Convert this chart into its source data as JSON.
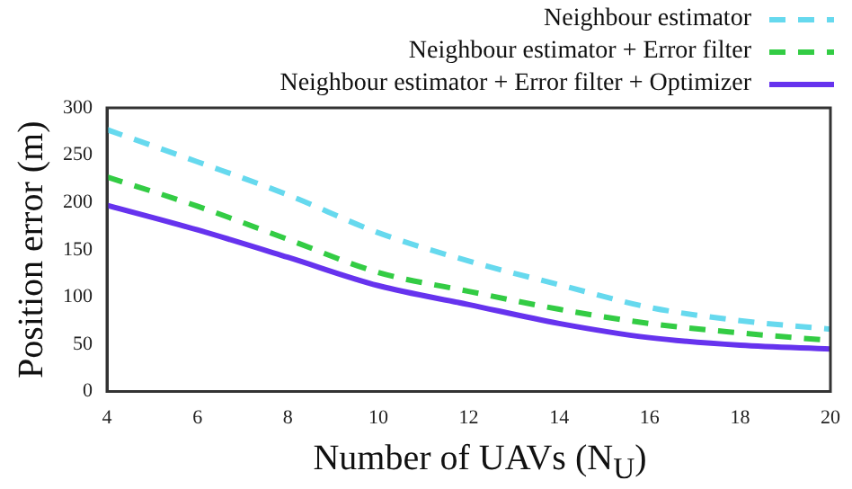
{
  "chart_data": {
    "type": "line",
    "xlabel": "Number of UAVs (N$_{U}$)",
    "ylabel": "Position error (m)",
    "x": [
      4,
      6,
      8,
      10,
      12,
      14,
      16,
      18,
      20
    ],
    "xlim": [
      4,
      20
    ],
    "xticks": [
      4,
      6,
      8,
      10,
      12,
      14,
      16,
      18,
      20
    ],
    "ylim": [
      0,
      300
    ],
    "yticks": [
      0,
      50,
      100,
      150,
      200,
      250,
      300
    ],
    "grid": false,
    "legend": "top right",
    "marker": "none",
    "series": [
      {
        "name": "Neighbour estimator",
        "color": "#66d9ee",
        "line_style": "dashed",
        "values": [
          277,
          243,
          208,
          168,
          138,
          113,
          89,
          75,
          66
        ]
      },
      {
        "name": "Neighbour estimator + Error filter",
        "color": "#33cc44",
        "line_style": "dashed",
        "values": [
          227,
          196,
          161,
          126,
          106,
          87,
          72,
          62,
          54
        ]
      },
      {
        "name": "Neighbour estimator + Error filter + Optimizer",
        "color": "#6633ee",
        "line_style": "solid",
        "values": [
          197,
          171,
          142,
          112,
          92,
          72,
          57,
          49,
          45
        ]
      }
    ]
  }
}
